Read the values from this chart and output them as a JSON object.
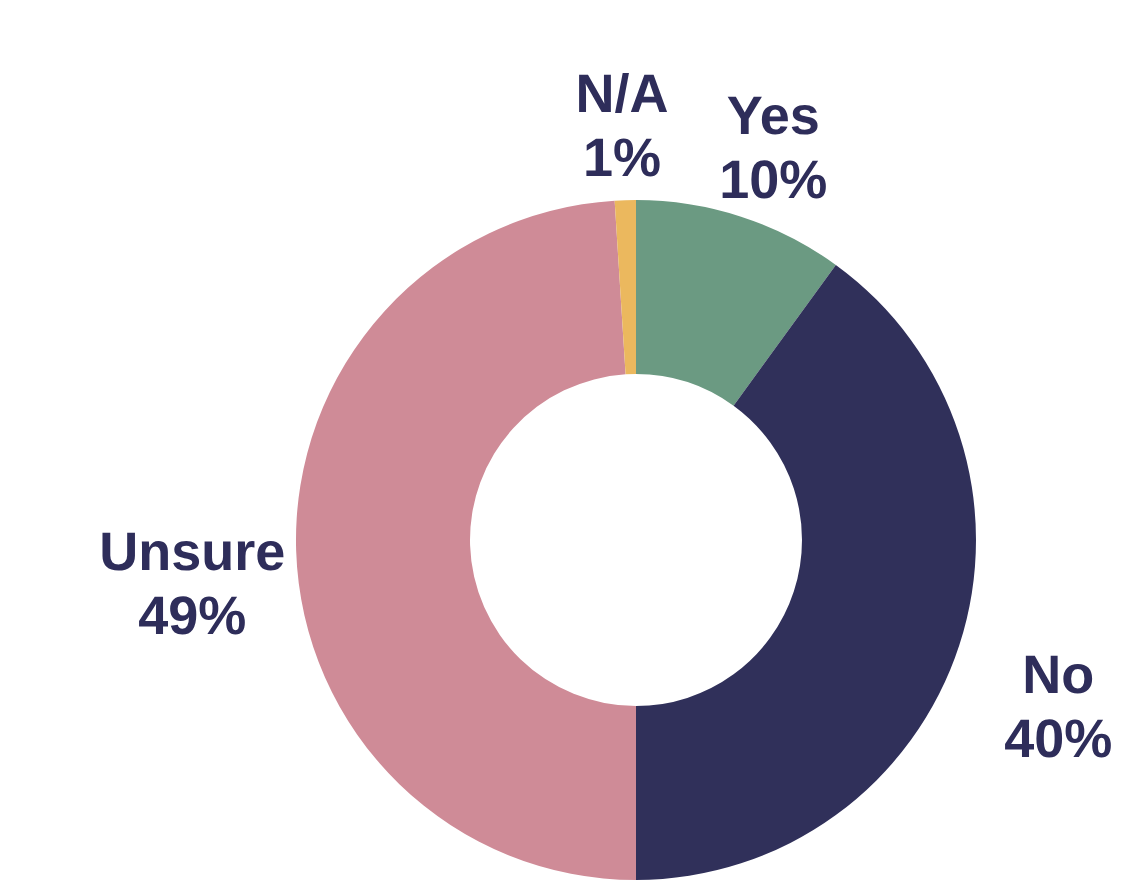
{
  "chart_data": {
    "type": "donut",
    "categories": [
      "Yes",
      "No",
      "Unsure",
      "N/A"
    ],
    "values": [
      10,
      40,
      49,
      1
    ],
    "value_labels": [
      "10%",
      "40%",
      "49%",
      "1%"
    ],
    "colors": [
      "#6b9a82",
      "#30305a",
      "#cf8b97",
      "#ebb85e"
    ]
  }
}
